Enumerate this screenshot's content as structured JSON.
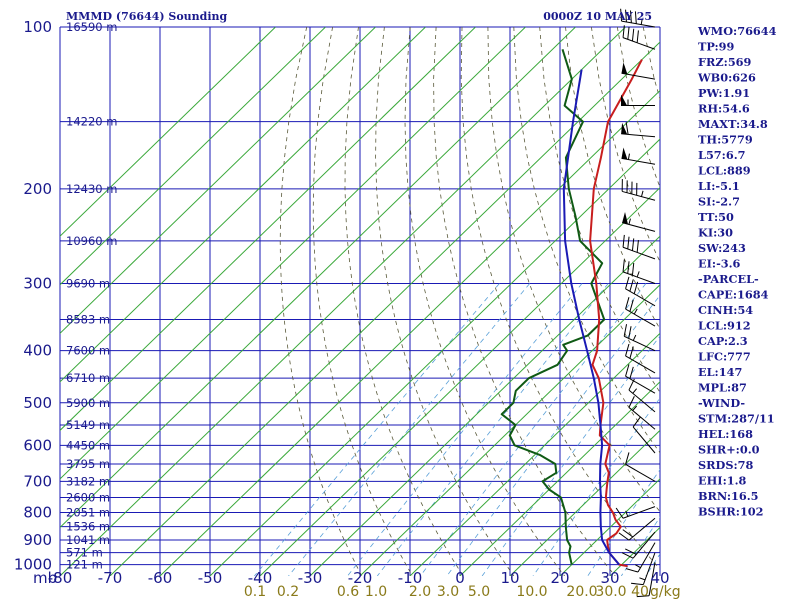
{
  "chart_data": {
    "type": "line",
    "title_left": "MMMD (76644) Sounding",
    "title_right": "0000Z 10 MAY 25",
    "pressure_label": "mb",
    "pressure_ticks": [
      100,
      200,
      300,
      400,
      500,
      600,
      700,
      800,
      900,
      1000
    ],
    "temperature_ticks": [
      -80,
      -70,
      -60,
      -50,
      -40,
      -30,
      -20,
      -10,
      0,
      10,
      20,
      30,
      40
    ],
    "mixing_ratio_unit": "g/kg",
    "mixing_ratio_labels": [
      "0.1",
      "0.2",
      "0.6",
      "1.0",
      "2.0",
      "3.0",
      "5.0",
      "10.0",
      "20.0",
      "30.0",
      "40"
    ],
    "height_labels": [
      {
        "p": 100,
        "h": "16590 m"
      },
      {
        "p": 150,
        "h": "14220 m"
      },
      {
        "p": 200,
        "h": "12430 m"
      },
      {
        "p": 250,
        "h": "10960 m"
      },
      {
        "p": 300,
        "h": "9690 m"
      },
      {
        "p": 350,
        "h": "8583 m"
      },
      {
        "p": 400,
        "h": "7600 m"
      },
      {
        "p": 450,
        "h": "6710 m"
      },
      {
        "p": 500,
        "h": "5900 m"
      },
      {
        "p": 550,
        "h": "5149 m"
      },
      {
        "p": 600,
        "h": "4450 m"
      },
      {
        "p": 650,
        "h": "3795 m"
      },
      {
        "p": 700,
        "h": "3182 m"
      },
      {
        "p": 750,
        "h": "2600 m"
      },
      {
        "p": 800,
        "h": "2051 m"
      },
      {
        "p": 850,
        "h": "1536 m"
      },
      {
        "p": 900,
        "h": "1041 m"
      },
      {
        "p": 950,
        "h": "571 m"
      },
      {
        "p": 1000,
        "h": "121 m"
      }
    ],
    "series": [
      {
        "role": "temperature",
        "color": "#c81e1e",
        "points": [
          [
            1007,
            31.5
          ],
          [
            1000,
            29.5
          ],
          [
            950,
            25
          ],
          [
            925,
            23.5
          ],
          [
            900,
            22
          ],
          [
            875,
            22.5
          ],
          [
            850,
            22
          ],
          [
            825,
            19.5
          ],
          [
            800,
            17.5
          ],
          [
            775,
            15
          ],
          [
            750,
            13
          ],
          [
            725,
            11.5
          ],
          [
            700,
            10
          ],
          [
            675,
            8.5
          ],
          [
            650,
            6
          ],
          [
            600,
            3
          ],
          [
            575,
            -1
          ],
          [
            550,
            -3
          ],
          [
            500,
            -7
          ],
          [
            450,
            -13
          ],
          [
            425,
            -17
          ],
          [
            400,
            -19
          ],
          [
            350,
            -25
          ],
          [
            300,
            -33
          ],
          [
            250,
            -43
          ],
          [
            200,
            -53
          ],
          [
            175,
            -58
          ],
          [
            150,
            -64
          ],
          [
            125,
            -68
          ],
          [
            115,
            -70
          ]
        ]
      },
      {
        "role": "dewpoint",
        "color": "#0f5a14",
        "points": [
          [
            1000,
            20
          ],
          [
            950,
            17
          ],
          [
            925,
            16
          ],
          [
            900,
            14
          ],
          [
            850,
            11
          ],
          [
            800,
            8
          ],
          [
            750,
            4
          ],
          [
            725,
            0
          ],
          [
            700,
            -3
          ],
          [
            675,
            -2
          ],
          [
            650,
            -4
          ],
          [
            625,
            -9
          ],
          [
            600,
            -16
          ],
          [
            575,
            -19
          ],
          [
            550,
            -20
          ],
          [
            525,
            -25
          ],
          [
            500,
            -25
          ],
          [
            475,
            -27
          ],
          [
            450,
            -27
          ],
          [
            425,
            -24
          ],
          [
            400,
            -25
          ],
          [
            390,
            -27
          ],
          [
            375,
            -24
          ],
          [
            350,
            -24
          ],
          [
            300,
            -34
          ],
          [
            275,
            -36
          ],
          [
            250,
            -45
          ],
          [
            225,
            -51
          ],
          [
            200,
            -58
          ],
          [
            175,
            -65
          ],
          [
            150,
            -69
          ],
          [
            140,
            -76
          ],
          [
            125,
            -80
          ],
          [
            110,
            -88
          ]
        ]
      },
      {
        "role": "parcel",
        "color": "#1a1ab4",
        "points": [
          [
            1000,
            29.5
          ],
          [
            950,
            25
          ],
          [
            900,
            21
          ],
          [
            850,
            18
          ],
          [
            800,
            15
          ],
          [
            750,
            12
          ],
          [
            700,
            8.5
          ],
          [
            650,
            5
          ],
          [
            600,
            1.5
          ],
          [
            550,
            -3
          ],
          [
            500,
            -8
          ],
          [
            450,
            -14
          ],
          [
            400,
            -21
          ],
          [
            350,
            -29
          ],
          [
            300,
            -38
          ],
          [
            250,
            -48
          ],
          [
            200,
            -59
          ],
          [
            150,
            -71
          ],
          [
            120,
            -80
          ]
        ]
      }
    ],
    "wind_barbs": [
      {
        "p": 100,
        "dir": 280,
        "spd": 45
      },
      {
        "p": 110,
        "dir": 290,
        "spd": 40
      },
      {
        "p": 125,
        "dir": 280,
        "spd": 50
      },
      {
        "p": 140,
        "dir": 270,
        "spd": 55
      },
      {
        "p": 160,
        "dir": 275,
        "spd": 60
      },
      {
        "p": 180,
        "dir": 280,
        "spd": 55
      },
      {
        "p": 210,
        "dir": 285,
        "spd": 45
      },
      {
        "p": 240,
        "dir": 285,
        "spd": 55
      },
      {
        "p": 270,
        "dir": 290,
        "spd": 40
      },
      {
        "p": 300,
        "dir": 290,
        "spd": 35
      },
      {
        "p": 330,
        "dir": 300,
        "spd": 30
      },
      {
        "p": 360,
        "dir": 300,
        "spd": 25
      },
      {
        "p": 400,
        "dir": 295,
        "spd": 25
      },
      {
        "p": 440,
        "dir": 300,
        "spd": 20
      },
      {
        "p": 480,
        "dir": 300,
        "spd": 20
      },
      {
        "p": 520,
        "dir": 310,
        "spd": 15
      },
      {
        "p": 560,
        "dir": 310,
        "spd": 15
      },
      {
        "p": 620,
        "dir": 320,
        "spd": 10
      },
      {
        "p": 700,
        "dir": 300,
        "spd": 10
      },
      {
        "p": 780,
        "dir": 250,
        "spd": 15
      },
      {
        "p": 820,
        "dir": 230,
        "spd": 20
      },
      {
        "p": 870,
        "dir": 220,
        "spd": 20
      },
      {
        "p": 910,
        "dir": 210,
        "spd": 15
      },
      {
        "p": 950,
        "dir": 200,
        "spd": 15
      },
      {
        "p": 990,
        "dir": 190,
        "spd": 10
      }
    ]
  },
  "indices": [
    "WMO:76644",
    "TP:99",
    "FRZ:569",
    "WB0:626",
    "PW:1.91",
    "RH:54.6",
    "MAXT:34.8",
    "TH:5779",
    "L57:6.7",
    "LCL:889",
    "LI:-5.1",
    "SI:-2.7",
    "TT:50",
    "KI:30",
    "SW:243",
    "EI:-3.6",
    "-PARCEL-",
    "CAPE:1684",
    "CINH:54",
    "LCL:912",
    "CAP:2.3",
    "LFC:777",
    "EL:147",
    "MPL:87",
    "-WIND-",
    "STM:287/11",
    "HEL:168",
    "SHR+:0.0",
    "SRDS:78",
    "EHI:1.8",
    "BRN:16.5",
    "BSHR:102"
  ]
}
